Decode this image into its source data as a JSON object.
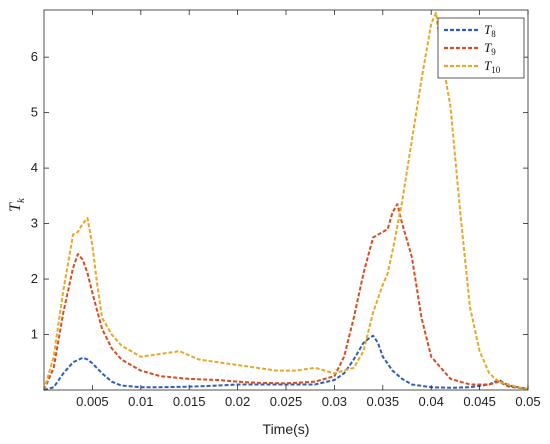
{
  "chart_data": {
    "type": "line",
    "xlabel": "Time(s)",
    "ylabel_main": "T",
    "ylabel_sub": "k",
    "xlim": [
      0,
      0.05
    ],
    "ylim": [
      0,
      6.85
    ],
    "xticks": [
      0.005,
      0.01,
      0.015,
      0.02,
      0.025,
      0.03,
      0.035,
      0.04,
      0.045,
      0.05
    ],
    "xtick_labels": [
      "0.005",
      "0.01",
      "0.015",
      "0.02",
      "0.025",
      "0.03",
      "0.035",
      "0.04",
      "0.045",
      "0.05"
    ],
    "yticks": [
      1,
      2,
      3,
      4,
      5,
      6
    ],
    "ytick_labels": [
      "1",
      "2",
      "3",
      "4",
      "5",
      "6"
    ],
    "legend_position": "top-right",
    "series": [
      {
        "name_main": "T",
        "name_sub": "8",
        "color": "#2f5fb3",
        "x": [
          0,
          0.001,
          0.002,
          0.003,
          0.004,
          0.0045,
          0.005,
          0.006,
          0.007,
          0.008,
          0.01,
          0.012,
          0.015,
          0.018,
          0.02,
          0.022,
          0.025,
          0.028,
          0.03,
          0.031,
          0.032,
          0.033,
          0.0335,
          0.034,
          0.0345,
          0.035,
          0.036,
          0.037,
          0.038,
          0.04,
          0.042,
          0.044,
          0.046,
          0.047,
          0.048,
          0.05
        ],
        "y": [
          0,
          0.05,
          0.3,
          0.5,
          0.58,
          0.55,
          0.48,
          0.3,
          0.15,
          0.08,
          0.05,
          0.05,
          0.06,
          0.08,
          0.1,
          0.1,
          0.1,
          0.1,
          0.18,
          0.3,
          0.55,
          0.85,
          0.92,
          0.98,
          0.85,
          0.6,
          0.35,
          0.2,
          0.1,
          0.05,
          0.04,
          0.05,
          0.1,
          0.18,
          0.08,
          0.02
        ]
      },
      {
        "name_main": "T",
        "name_sub": "9",
        "color": "#d64d1f",
        "x": [
          0,
          0.001,
          0.002,
          0.003,
          0.0035,
          0.004,
          0.0045,
          0.005,
          0.006,
          0.007,
          0.008,
          0.01,
          0.012,
          0.015,
          0.018,
          0.02,
          0.022,
          0.025,
          0.028,
          0.03,
          0.031,
          0.032,
          0.033,
          0.034,
          0.035,
          0.0355,
          0.036,
          0.0365,
          0.037,
          0.038,
          0.039,
          0.04,
          0.042,
          0.044,
          0.046,
          0.047,
          0.048,
          0.05
        ],
        "y": [
          0,
          0.4,
          1.4,
          2.2,
          2.45,
          2.35,
          2.1,
          1.75,
          1.1,
          0.75,
          0.55,
          0.35,
          0.25,
          0.2,
          0.18,
          0.15,
          0.13,
          0.12,
          0.15,
          0.25,
          0.6,
          1.3,
          2.1,
          2.75,
          2.85,
          2.9,
          3.2,
          3.35,
          3.0,
          2.4,
          1.3,
          0.6,
          0.2,
          0.1,
          0.1,
          0.15,
          0.06,
          0.02
        ]
      },
      {
        "name_main": "T",
        "name_sub": "10",
        "color": "#e6a82a",
        "x": [
          0,
          0.001,
          0.002,
          0.003,
          0.0035,
          0.004,
          0.0045,
          0.005,
          0.0055,
          0.006,
          0.007,
          0.008,
          0.009,
          0.01,
          0.012,
          0.014,
          0.016,
          0.018,
          0.02,
          0.022,
          0.024,
          0.026,
          0.028,
          0.03,
          0.031,
          0.032,
          0.033,
          0.034,
          0.035,
          0.0355,
          0.036,
          0.037,
          0.038,
          0.039,
          0.04,
          0.0405,
          0.041,
          0.042,
          0.043,
          0.044,
          0.045,
          0.046,
          0.047,
          0.048,
          0.049,
          0.05
        ],
        "y": [
          0,
          0.6,
          1.8,
          2.8,
          2.85,
          3.0,
          3.1,
          2.6,
          1.9,
          1.3,
          1.0,
          0.8,
          0.7,
          0.6,
          0.65,
          0.7,
          0.55,
          0.5,
          0.45,
          0.4,
          0.35,
          0.35,
          0.4,
          0.3,
          0.35,
          0.4,
          0.7,
          1.4,
          1.9,
          2.1,
          2.5,
          3.4,
          4.5,
          5.6,
          6.6,
          6.8,
          6.1,
          5.1,
          3.2,
          1.5,
          0.7,
          0.3,
          0.15,
          0.1,
          0.05,
          0.02
        ]
      }
    ]
  }
}
